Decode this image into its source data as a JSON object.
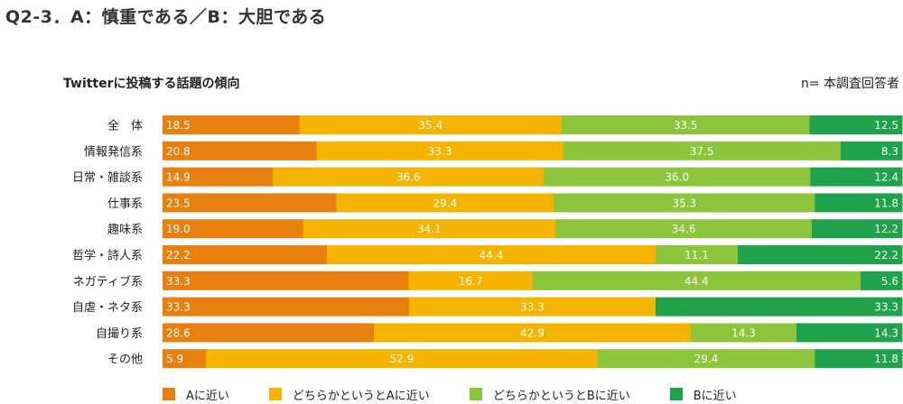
{
  "page_title": "Q2-3．A：慎重である／B：大胆である",
  "chart_subtitle": "Twitterに投稿する話題の傾向",
  "base_note": "n= 本調査回答者",
  "colors": [
    "#E8800F",
    "#F5B400",
    "#8CC43C",
    "#1FA24B"
  ],
  "chart_data": {
    "type": "bar",
    "orientation": "horizontal",
    "stacked": true,
    "title": "Q2-3．A：慎重である／B：大胆である",
    "subtitle": "Twitterに投稿する話題の傾向",
    "xlim": [
      0,
      100
    ],
    "legend_position": "bottom",
    "categories": [
      "全　体",
      "情報発信系",
      "日常・雑談系",
      "仕事系",
      "趣味系",
      "哲学・詩人系",
      "ネガティブ系",
      "自虐・ネタ系",
      "自撮り系",
      "その他"
    ],
    "series": [
      {
        "name": "Aに近い",
        "values": [
          "18.5",
          "20.8",
          "14.9",
          "23.5",
          "19.0",
          "22.2",
          "33.3",
          "33.3",
          "28.6",
          "5.9"
        ]
      },
      {
        "name": "どちらかというとAに近い",
        "values": [
          "35.4",
          "33.3",
          "36.6",
          "29.4",
          "34.1",
          "44.4",
          "16.7",
          "33.3",
          "42.9",
          "52.9"
        ]
      },
      {
        "name": "どちらかというとBに近い",
        "values": [
          "33.5",
          "37.5",
          "36.0",
          "35.3",
          "34.6",
          "11.1",
          "44.4",
          "0.0",
          "14.3",
          "29.4"
        ]
      },
      {
        "name": "Bに近い",
        "values": [
          "12.5",
          "8.3",
          "12.4",
          "11.8",
          "12.2",
          "22.2",
          "5.6",
          "33.3",
          "14.3",
          "11.8"
        ]
      }
    ]
  }
}
